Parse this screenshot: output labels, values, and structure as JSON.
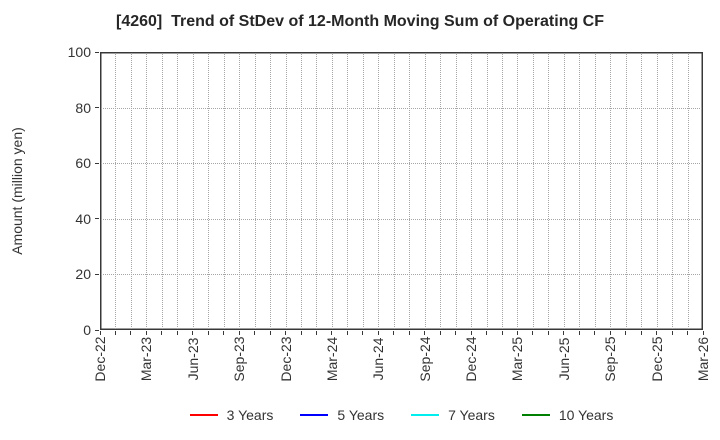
{
  "chart_data": {
    "type": "line",
    "title": "[4260]  Trend of StDev of 12-Month Moving Sum of Operating CF",
    "xlabel": "",
    "ylabel": "Amount (million yen)",
    "ylim": [
      0,
      100
    ],
    "yticks": [
      0,
      20,
      40,
      60,
      80,
      100
    ],
    "x_tick_labels": [
      "Dec-22",
      "Mar-23",
      "Jun-23",
      "Sep-23",
      "Dec-23",
      "Mar-24",
      "Jun-24",
      "Sep-24",
      "Dec-24",
      "Mar-25",
      "Jun-25",
      "Sep-25",
      "Dec-25",
      "Mar-26"
    ],
    "months_total": 40,
    "months_per_labeled_tick": 3,
    "grid": true,
    "grid_style": "dotted",
    "legend_position": "bottom-center",
    "series": [
      {
        "name": "3 Years",
        "color": "#ff0000",
        "values": []
      },
      {
        "name": "5 Years",
        "color": "#0000ff",
        "values": []
      },
      {
        "name": "7 Years",
        "color": "#00eeee",
        "values": []
      },
      {
        "name": "10 Years",
        "color": "#008000",
        "values": []
      }
    ]
  },
  "colors": {
    "axis": "#383838",
    "grid": "#a6a6a6",
    "title_text": "#262626",
    "tick_text": "#333333",
    "background": "#ffffff"
  }
}
